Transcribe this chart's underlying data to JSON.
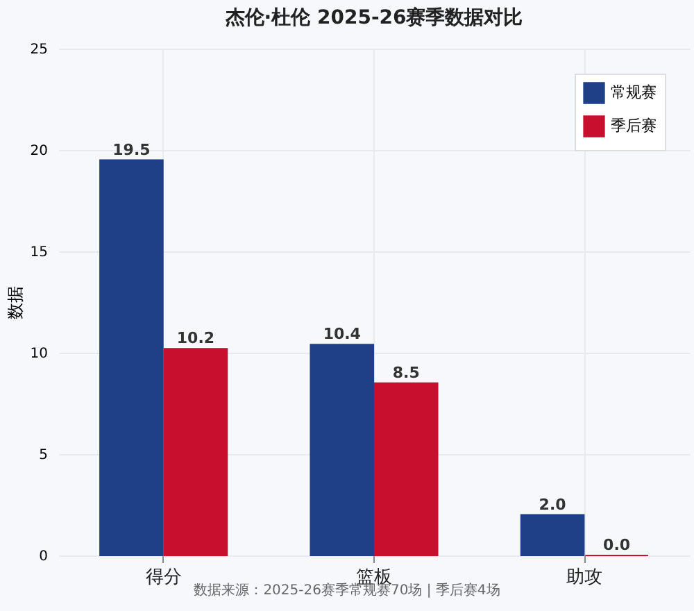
{
  "chart_data": {
    "type": "bar",
    "title": "杰伦·杜伦 2025-26赛季数据对比",
    "ylabel": "数据",
    "categories": [
      "得分",
      "篮板",
      "助攻"
    ],
    "series": [
      {
        "name": "常规赛",
        "color": "#1f3f86",
        "values": [
          19.5,
          10.4,
          2.0
        ],
        "value_labels": [
          "19.5",
          "10.4",
          "2.0"
        ]
      },
      {
        "name": "季后赛",
        "color": "#c8102e",
        "values": [
          10.2,
          8.5,
          0.0
        ],
        "value_labels": [
          "10.2",
          "8.5",
          "0.0"
        ]
      }
    ],
    "ylim": [
      0,
      25
    ],
    "yticks": [
      0,
      5,
      10,
      15,
      20,
      25
    ],
    "grid": true,
    "legend": "top right",
    "annotations": [
      "数据来源：2025-26赛季常规赛70场 | 季后赛4场"
    ]
  }
}
